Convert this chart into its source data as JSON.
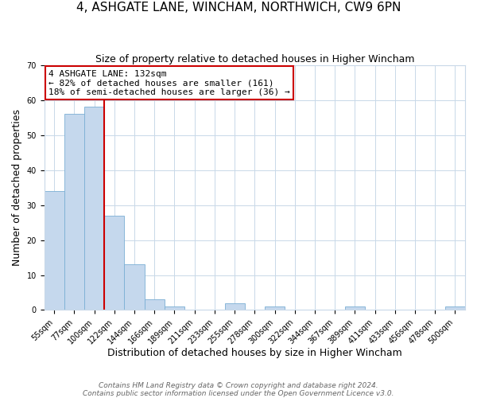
{
  "title": "4, ASHGATE LANE, WINCHAM, NORTHWICH, CW9 6PN",
  "subtitle": "Size of property relative to detached houses in Higher Wincham",
  "xlabel": "Distribution of detached houses by size in Higher Wincham",
  "ylabel": "Number of detached properties",
  "bar_labels": [
    "55sqm",
    "77sqm",
    "100sqm",
    "122sqm",
    "144sqm",
    "166sqm",
    "189sqm",
    "211sqm",
    "233sqm",
    "255sqm",
    "278sqm",
    "300sqm",
    "322sqm",
    "344sqm",
    "367sqm",
    "389sqm",
    "411sqm",
    "433sqm",
    "456sqm",
    "478sqm",
    "500sqm"
  ],
  "bar_values": [
    34,
    56,
    58,
    27,
    13,
    3,
    1,
    0,
    0,
    2,
    0,
    1,
    0,
    0,
    0,
    1,
    0,
    0,
    0,
    0,
    1
  ],
  "bar_color": "#c5d8ed",
  "bar_edge_color": "#7bafd4",
  "vline_color": "#cc0000",
  "ylim": [
    0,
    70
  ],
  "yticks": [
    0,
    10,
    20,
    30,
    40,
    50,
    60,
    70
  ],
  "annotation_text": "4 ASHGATE LANE: 132sqm\n← 82% of detached houses are smaller (161)\n18% of semi-detached houses are larger (36) →",
  "annotation_box_color": "#ffffff",
  "annotation_box_edge": "#cc0000",
  "footer_line1": "Contains HM Land Registry data © Crown copyright and database right 2024.",
  "footer_line2": "Contains public sector information licensed under the Open Government Licence v3.0.",
  "background_color": "#ffffff",
  "grid_color": "#c8d8e8",
  "title_fontsize": 11,
  "subtitle_fontsize": 9,
  "axis_label_fontsize": 9,
  "tick_fontsize": 7,
  "annotation_fontsize": 8,
  "footer_fontsize": 6.5
}
